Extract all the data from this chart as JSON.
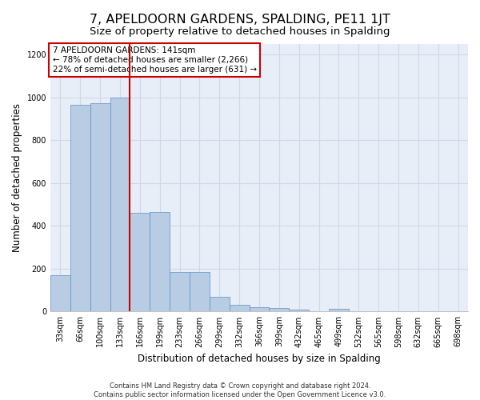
{
  "title": "7, APELDOORN GARDENS, SPALDING, PE11 1JT",
  "subtitle": "Size of property relative to detached houses in Spalding",
  "xlabel": "Distribution of detached houses by size in Spalding",
  "ylabel": "Number of detached properties",
  "footer_line1": "Contains HM Land Registry data © Crown copyright and database right 2024.",
  "footer_line2": "Contains public sector information licensed under the Open Government Licence v3.0.",
  "annotation_line1": "7 APELDOORN GARDENS: 141sqm",
  "annotation_line2": "← 78% of detached houses are smaller (2,266)",
  "annotation_line3": "22% of semi-detached houses are larger (631) →",
  "bar_categories": [
    "33sqm",
    "66sqm",
    "100sqm",
    "133sqm",
    "166sqm",
    "199sqm",
    "233sqm",
    "266sqm",
    "299sqm",
    "332sqm",
    "366sqm",
    "399sqm",
    "432sqm",
    "465sqm",
    "499sqm",
    "532sqm",
    "565sqm",
    "598sqm",
    "632sqm",
    "665sqm",
    "698sqm"
  ],
  "bar_values": [
    170,
    965,
    975,
    1000,
    460,
    465,
    185,
    185,
    70,
    30,
    22,
    18,
    10,
    0,
    12,
    0,
    0,
    0,
    0,
    0,
    0
  ],
  "bar_color": "#b8cce4",
  "bar_edge_color": "#5b8fc9",
  "red_line_x": 3.5,
  "red_line_color": "#cc0000",
  "annotation_box_edge_color": "#cc0000",
  "annotation_box_face_color": "#ffffff",
  "ylim": [
    0,
    1250
  ],
  "yticks": [
    0,
    200,
    400,
    600,
    800,
    1000,
    1200
  ],
  "grid_color": "#d0d8e8",
  "plot_bg_color": "#e8eef8",
  "title_fontsize": 11.5,
  "subtitle_fontsize": 9.5,
  "axis_label_fontsize": 8.5,
  "tick_fontsize": 7,
  "annotation_fontsize": 7.5,
  "footer_fontsize": 6.0
}
